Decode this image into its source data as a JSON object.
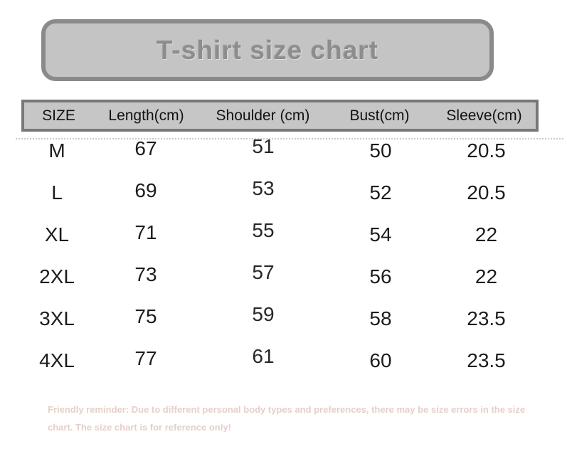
{
  "title": "T-shirt size chart",
  "table": {
    "headers": [
      "SIZE",
      "Length(cm)",
      "Shoulder (cm)",
      "Bust(cm)",
      "Sleeve(cm)"
    ],
    "rows": [
      [
        "M",
        "67",
        "51",
        "50",
        "20.5"
      ],
      [
        "L",
        "69",
        "53",
        "52",
        "20.5"
      ],
      [
        "XL",
        "71",
        "55",
        "54",
        "22"
      ],
      [
        "2XL",
        "73",
        "57",
        "56",
        "22"
      ],
      [
        "3XL",
        "75",
        "59",
        "58",
        "23.5"
      ],
      [
        "4XL",
        "77",
        "61",
        "60",
        "23.5"
      ]
    ]
  },
  "footer_note": "Friendly reminder: Due to different personal body types and preferences, there may be size errors in the size chart. The size chart is for reference only!",
  "colors": {
    "background": "#ffffff",
    "banner_fill": "#c4c4c4",
    "banner_border": "#8a8a8a",
    "title_text": "#8d8d8d",
    "header_fill": "#c6c6c6",
    "header_border": "#787878",
    "header_text": "#121212",
    "data_text": "#1c1c1c",
    "footer_text": "#e5d0c9"
  }
}
